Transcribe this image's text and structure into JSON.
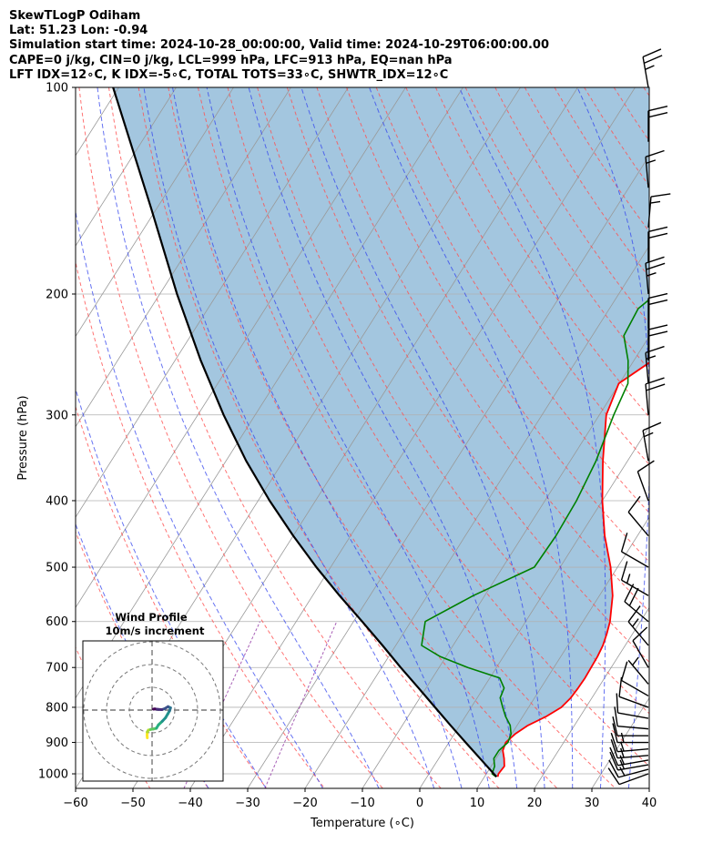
{
  "header": {
    "line1": "SkewTLogP Odiham",
    "line2": "Lat: 51.23   Lon: -0.94",
    "line3": "Simulation start time: 2024-10-28_00:00:00, Valid time: 2024-10-29T06:00:00.00",
    "line4": "CAPE=0 j/kg, CIN=0 j/kg, LCL=999 hPa, LFC=913 hPa, EQ=nan hPa",
    "line5": "LFT IDX=12∘C, K IDX=-5∘C, TOTAL TOTS=33∘C, SHWTR_IDX=12∘C"
  },
  "chart_data": {
    "type": "line",
    "xlabel": "Temperature (∘C)",
    "ylabel": "Pressure (hPa)",
    "xlim": [
      -60,
      40
    ],
    "ylim": [
      1050,
      100
    ],
    "y_scale": "log",
    "skew": true,
    "grid": true,
    "x_ticks": [
      -60,
      -50,
      -40,
      -30,
      -20,
      -10,
      0,
      10,
      20,
      30,
      40
    ],
    "y_ticks": [
      100,
      200,
      300,
      400,
      500,
      600,
      700,
      800,
      900,
      1000
    ],
    "colors": {
      "temperature": "#ff0000",
      "dewpoint": "#008000",
      "parcel": "#000000",
      "cape_fill": "#a3c6df",
      "dry_adiabats": "#ff5050",
      "moist_adiabats": "#3344ee",
      "mixing_ratio": "#9944aa",
      "isotherms": "#999999"
    },
    "series": [
      {
        "role": "temperature",
        "pressure": [
          1010,
          1000,
          975,
          950,
          925,
          900,
          875,
          850,
          825,
          800,
          775,
          750,
          725,
          700,
          675,
          650,
          625,
          600,
          550,
          500,
          450,
          400,
          350,
          300,
          270,
          250,
          230,
          210,
          200,
          185,
          170,
          150,
          130,
          115,
          100
        ],
        "values": [
          12.3,
          12.1,
          12.3,
          11.4,
          10.3,
          9.9,
          10.6,
          11.9,
          14.1,
          15.7,
          16.3,
          16.5,
          16.6,
          16.5,
          16.4,
          16.1,
          15.5,
          14.7,
          12.3,
          8.8,
          4.3,
          0.0,
          -4.3,
          -8.8,
          -10.1,
          -6.8,
          -3.5,
          -0.3,
          0.8,
          3.5,
          6.8,
          10.9,
          16.0,
          19.5,
          24.5
        ]
      },
      {
        "role": "dewpoint",
        "pressure": [
          1010,
          1000,
          975,
          950,
          925,
          900,
          875,
          850,
          825,
          800,
          775,
          750,
          725,
          700,
          675,
          650,
          600,
          550,
          500,
          450,
          400,
          350,
          300,
          270,
          250,
          230,
          210,
          200,
          185,
          150,
          130,
          115,
          100
        ],
        "values": [
          12.0,
          11.0,
          10.6,
          9.6,
          9.6,
          10.3,
          9.9,
          8.8,
          7.0,
          5.5,
          4.0,
          3.6,
          1.7,
          -5.0,
          -11.0,
          -15.5,
          -17.5,
          -12.0,
          -4.5,
          -4.2,
          -4.5,
          -5.5,
          -7.5,
          -8.5,
          -11.0,
          -14.5,
          -15.0,
          -13.5,
          -12.0,
          -16.5,
          -18.5,
          -16.0,
          -13.0
        ]
      },
      {
        "role": "parcel",
        "pressure": [
          1010,
          1000,
          950,
          900,
          850,
          800,
          750,
          700,
          650,
          600,
          550,
          500,
          450,
          400,
          350,
          300,
          250,
          200,
          150,
          100
        ],
        "values": [
          12.1,
          11.3,
          7.2,
          2.9,
          -1.6,
          -6.3,
          -11.3,
          -16.7,
          -22.3,
          -28.5,
          -35.3,
          -42.5,
          -50.0,
          -58.0,
          -66.5,
          -75.5,
          -85.5,
          -97.0,
          -111.0,
          -131.0
        ]
      }
    ],
    "dry_adiabats_theta_K": [
      223,
      233,
      243,
      253,
      263,
      273,
      283,
      293,
      303,
      313,
      323,
      333,
      343,
      353,
      363,
      373,
      383,
      393,
      403,
      413,
      423,
      433,
      443,
      453
    ],
    "moist_adiabats_t0_C": [
      -40,
      -30,
      -20,
      -10,
      0,
      5,
      10,
      15,
      20,
      25,
      30,
      35,
      40
    ],
    "mixing_ratio_lines_gkg": [
      0.1,
      0.4
    ],
    "wind_barbs": {
      "pressure": [
        1000,
        985,
        970,
        955,
        940,
        920,
        900,
        880,
        860,
        830,
        800,
        770,
        740,
        700,
        650,
        600,
        550,
        500,
        450,
        400,
        350,
        300,
        270,
        250,
        225,
        200,
        180,
        160,
        140,
        120,
        100
      ],
      "speed_kt": [
        10,
        15,
        15,
        15,
        15,
        15,
        15,
        10,
        10,
        10,
        10,
        10,
        5,
        10,
        15,
        20,
        15,
        10,
        10,
        10,
        15,
        20,
        15,
        20,
        20,
        25,
        20,
        15,
        15,
        20,
        25
      ],
      "direction_deg": [
        250,
        255,
        260,
        260,
        265,
        265,
        270,
        270,
        275,
        280,
        290,
        300,
        320,
        330,
        320,
        310,
        300,
        300,
        320,
        340,
        350,
        355,
        355,
        360,
        360,
        355,
        360,
        5,
        355,
        360,
        350
      ]
    },
    "hodograph": {
      "title": "Wind Profile",
      "subtitle": "10m/s increment",
      "rings_ms": [
        10,
        20,
        30
      ],
      "colormap": "viridis",
      "u_ms": [
        -2.1,
        -2.2,
        -2.1,
        -1.6,
        -0.6,
        0.6,
        1.9,
        2.8,
        4.5,
        5.9,
        6.9,
        7.7,
        8.1,
        7.0,
        5.5,
        4.3,
        2.6,
        1.2,
        0.6
      ],
      "v_ms": [
        -12.2,
        -11.0,
        -9.6,
        -8.8,
        -8.5,
        -8.3,
        -8.0,
        -6.5,
        -4.9,
        -3.4,
        -1.7,
        -0.3,
        1.0,
        1.5,
        0.6,
        0.2,
        0.3,
        0.5,
        0.4
      ]
    }
  }
}
